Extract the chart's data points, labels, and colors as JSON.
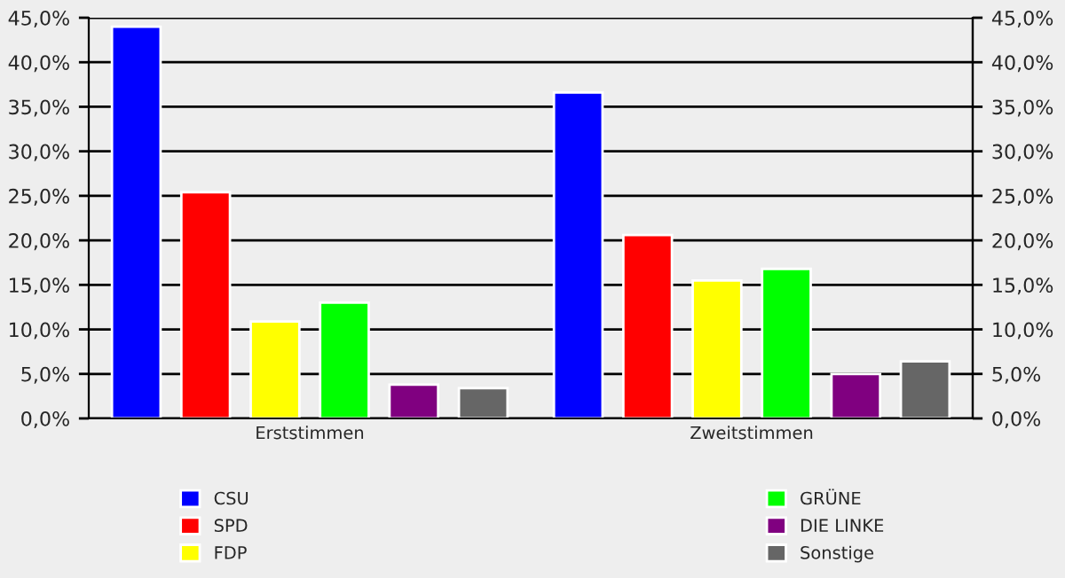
{
  "chart_data": {
    "type": "bar",
    "categories": [
      "Erststimmen",
      "Zweitstimmen"
    ],
    "series": [
      {
        "name": "CSU",
        "color": "#0000ff",
        "values": [
          44.0,
          36.6
        ]
      },
      {
        "name": "SPD",
        "color": "#ff0000",
        "values": [
          25.4,
          20.6
        ]
      },
      {
        "name": "FDP",
        "color": "#ffff00",
        "values": [
          10.9,
          15.5
        ]
      },
      {
        "name": "GRÜNE",
        "color": "#00ff00",
        "values": [
          13.0,
          16.8
        ]
      },
      {
        "name": "DIE LINKE",
        "color": "#800080",
        "values": [
          3.8,
          5.0
        ]
      },
      {
        "name": "Sonstige",
        "color": "#666666",
        "values": [
          3.4,
          6.4
        ]
      }
    ],
    "ylim": [
      0,
      45
    ],
    "yticks": [
      {
        "value": 0,
        "label": "0,0%"
      },
      {
        "value": 5,
        "label": "5,0%"
      },
      {
        "value": 10,
        "label": "10,0%"
      },
      {
        "value": 15,
        "label": "15,0%"
      },
      {
        "value": 20,
        "label": "20,0%"
      },
      {
        "value": 25,
        "label": "25,0%"
      },
      {
        "value": 30,
        "label": "30,0%"
      },
      {
        "value": 35,
        "label": "35,0%"
      },
      {
        "value": 40,
        "label": "40,0%"
      },
      {
        "value": 45,
        "label": "45,0%"
      }
    ],
    "y2lim": [
      0,
      45
    ],
    "y2ticks": [
      {
        "value": 0,
        "label": "0,0%"
      },
      {
        "value": 5,
        "label": "5,0%"
      },
      {
        "value": 10,
        "label": "10,0%"
      },
      {
        "value": 15,
        "label": "15,0%"
      },
      {
        "value": 20,
        "label": "20,0%"
      },
      {
        "value": 25,
        "label": "25,0%"
      },
      {
        "value": 30,
        "label": "30,0%"
      },
      {
        "value": 35,
        "label": "35,0%"
      },
      {
        "value": 40,
        "label": "40,0%"
      },
      {
        "value": 45,
        "label": "45,0%"
      }
    ],
    "grid": "y",
    "legend": "bottom"
  }
}
